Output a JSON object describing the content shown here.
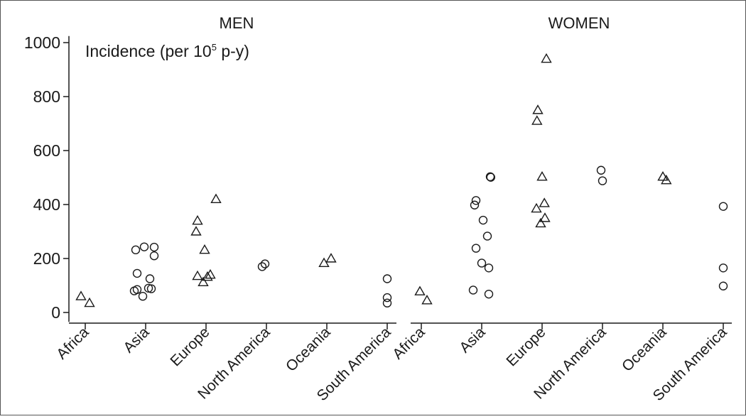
{
  "chart_data": {
    "type": "scatter",
    "ylabel_main": "Incidence (per 10",
    "ylabel_sup": "5",
    "ylabel_tail": " p-y)",
    "ylim": [
      -40,
      1040
    ],
    "yticks": [
      0,
      200,
      400,
      600,
      800,
      1000
    ],
    "ytick_labels": [
      "0",
      "200",
      "400",
      "600",
      "800",
      "1000"
    ],
    "categories": [
      "Africa",
      "Asia",
      "Europe",
      "North America",
      "Oceania",
      "South America"
    ],
    "marker_legend": {
      "triangle": "one marker style",
      "circle": "other marker style"
    },
    "panels": [
      {
        "title": "MEN",
        "points": [
          {
            "category": "Africa",
            "offset": -0.15,
            "y": 60,
            "marker": "triangle"
          },
          {
            "category": "Africa",
            "offset": 0.15,
            "y": 35,
            "marker": "triangle"
          },
          {
            "category": "Asia",
            "offset": -0.4,
            "y": 80,
            "marker": "circle"
          },
          {
            "category": "Asia",
            "offset": -0.3,
            "y": 85,
            "marker": "circle"
          },
          {
            "category": "Asia",
            "offset": -0.1,
            "y": 60,
            "marker": "circle"
          },
          {
            "category": "Asia",
            "offset": 0.1,
            "y": 90,
            "marker": "circle"
          },
          {
            "category": "Asia",
            "offset": 0.2,
            "y": 88,
            "marker": "circle"
          },
          {
            "category": "Asia",
            "offset": 0.15,
            "y": 125,
            "marker": "circle"
          },
          {
            "category": "Asia",
            "offset": -0.3,
            "y": 145,
            "marker": "circle"
          },
          {
            "category": "Asia",
            "offset": -0.35,
            "y": 232,
            "marker": "circle"
          },
          {
            "category": "Asia",
            "offset": -0.05,
            "y": 243,
            "marker": "circle"
          },
          {
            "category": "Asia",
            "offset": 0.3,
            "y": 242,
            "marker": "circle"
          },
          {
            "category": "Asia",
            "offset": 0.3,
            "y": 210,
            "marker": "circle"
          },
          {
            "category": "Europe",
            "offset": -0.3,
            "y": 340,
            "marker": "triangle"
          },
          {
            "category": "Europe",
            "offset": -0.35,
            "y": 300,
            "marker": "triangle"
          },
          {
            "category": "Europe",
            "offset": -0.05,
            "y": 232,
            "marker": "triangle"
          },
          {
            "category": "Europe",
            "offset": 0.35,
            "y": 420,
            "marker": "triangle"
          },
          {
            "category": "Europe",
            "offset": -0.3,
            "y": 135,
            "marker": "triangle"
          },
          {
            "category": "Europe",
            "offset": -0.1,
            "y": 112,
            "marker": "triangle"
          },
          {
            "category": "Europe",
            "offset": 0.05,
            "y": 132,
            "marker": "triangle"
          },
          {
            "category": "Europe",
            "offset": 0.15,
            "y": 140,
            "marker": "triangle"
          },
          {
            "category": "North America",
            "offset": -0.15,
            "y": 170,
            "marker": "circle"
          },
          {
            "category": "North America",
            "offset": -0.05,
            "y": 180,
            "marker": "circle"
          },
          {
            "category": "Oceania",
            "offset": -0.1,
            "y": 183,
            "marker": "triangle"
          },
          {
            "category": "Oceania",
            "offset": 0.15,
            "y": 200,
            "marker": "triangle"
          },
          {
            "category": "South America",
            "offset": 0.0,
            "y": 125,
            "marker": "circle"
          },
          {
            "category": "South America",
            "offset": 0.0,
            "y": 55,
            "marker": "circle"
          },
          {
            "category": "South America",
            "offset": 0.0,
            "y": 35,
            "marker": "circle"
          }
        ]
      },
      {
        "title": "WOMEN",
        "points": [
          {
            "category": "Africa",
            "offset": -0.05,
            "y": 78,
            "marker": "triangle"
          },
          {
            "category": "Africa",
            "offset": 0.2,
            "y": 45,
            "marker": "triangle"
          },
          {
            "category": "Asia",
            "offset": -0.2,
            "y": 415,
            "marker": "circle"
          },
          {
            "category": "Asia",
            "offset": -0.25,
            "y": 398,
            "marker": "circle"
          },
          {
            "category": "Asia",
            "offset": 0.05,
            "y": 342,
            "marker": "circle"
          },
          {
            "category": "Asia",
            "offset": 0.2,
            "y": 283,
            "marker": "circle"
          },
          {
            "category": "Asia",
            "offset": -0.2,
            "y": 238,
            "marker": "circle"
          },
          {
            "category": "Asia",
            "offset": 0.0,
            "y": 183,
            "marker": "circle"
          },
          {
            "category": "Asia",
            "offset": 0.25,
            "y": 165,
            "marker": "circle"
          },
          {
            "category": "Asia",
            "offset": -0.3,
            "y": 83,
            "marker": "circle"
          },
          {
            "category": "Asia",
            "offset": 0.25,
            "y": 68,
            "marker": "circle"
          },
          {
            "category": "Asia",
            "offset": 0.3,
            "y": 503,
            "marker": "circle"
          },
          {
            "category": "Asia",
            "offset": 0.32,
            "y": 501,
            "marker": "circle"
          },
          {
            "category": "Europe",
            "offset": 0.15,
            "y": 940,
            "marker": "triangle"
          },
          {
            "category": "Europe",
            "offset": -0.15,
            "y": 750,
            "marker": "triangle"
          },
          {
            "category": "Europe",
            "offset": -0.18,
            "y": 710,
            "marker": "triangle"
          },
          {
            "category": "Europe",
            "offset": 0.0,
            "y": 503,
            "marker": "triangle"
          },
          {
            "category": "Europe",
            "offset": -0.2,
            "y": 385,
            "marker": "triangle"
          },
          {
            "category": "Europe",
            "offset": 0.08,
            "y": 405,
            "marker": "triangle"
          },
          {
            "category": "Europe",
            "offset": -0.05,
            "y": 330,
            "marker": "triangle"
          },
          {
            "category": "Europe",
            "offset": 0.1,
            "y": 350,
            "marker": "triangle"
          },
          {
            "category": "North America",
            "offset": -0.05,
            "y": 527,
            "marker": "circle"
          },
          {
            "category": "North America",
            "offset": 0.0,
            "y": 488,
            "marker": "circle"
          },
          {
            "category": "Oceania",
            "offset": 0.0,
            "y": 503,
            "marker": "triangle"
          },
          {
            "category": "Oceania",
            "offset": 0.12,
            "y": 490,
            "marker": "triangle"
          },
          {
            "category": "South America",
            "offset": 0.0,
            "y": 393,
            "marker": "circle"
          },
          {
            "category": "South America",
            "offset": 0.0,
            "y": 165,
            "marker": "circle"
          },
          {
            "category": "South America",
            "offset": 0.0,
            "y": 98,
            "marker": "circle"
          }
        ]
      }
    ],
    "grid": false,
    "colors": {
      "stroke": "#1a1a1a",
      "frame": "#555555",
      "background": "#ffffff"
    }
  }
}
